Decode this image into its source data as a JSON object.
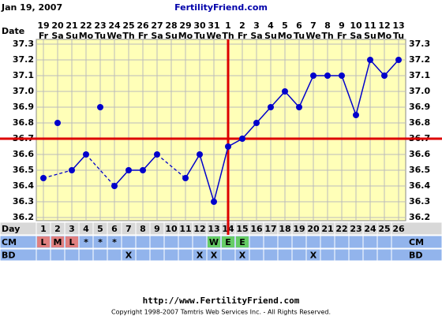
{
  "header": {
    "date": "Jan 19, 2007",
    "site": "FertilityFriend.com"
  },
  "chart_data": {
    "type": "line",
    "x": [
      1,
      2,
      3,
      4,
      5,
      6,
      7,
      8,
      9,
      10,
      11,
      12,
      13,
      14,
      15,
      16,
      17,
      18,
      19,
      20,
      21,
      22,
      23,
      24,
      25,
      26
    ],
    "xlim": [
      0.5,
      26.5
    ],
    "values": [
      36.45,
      null,
      36.5,
      36.6,
      null,
      36.4,
      36.5,
      36.5,
      36.6,
      null,
      36.45,
      36.6,
      36.3,
      36.65,
      36.7,
      36.8,
      36.9,
      37.0,
      36.9,
      37.1,
      37.1,
      37.1,
      36.85,
      37.2,
      37.1,
      37.2
    ],
    "discarded": [
      null,
      36.8,
      null,
      null,
      36.9,
      null,
      null,
      null,
      null,
      null,
      null,
      null,
      null,
      null,
      null,
      null,
      null,
      null,
      null,
      null,
      null,
      null,
      null,
      null,
      null,
      null
    ],
    "color": "#0000cc",
    "ylim": [
      36.2,
      37.3
    ],
    "yticks": [
      36.2,
      36.3,
      36.4,
      36.5,
      36.6,
      36.7,
      36.8,
      36.9,
      {
        "value": 37,
        "label": "37.0"
      },
      37.1,
      37.2,
      37.3
    ],
    "grid": true,
    "background": "#ffffb8",
    "coverline": 36.7,
    "ovulation_day": 14,
    "marker_color": "#dd0000",
    "dates": [
      19,
      20,
      21,
      22,
      23,
      24,
      25,
      26,
      27,
      28,
      29,
      30,
      31,
      1,
      2,
      3,
      4,
      5,
      6,
      7,
      8,
      9,
      10,
      11,
      12,
      13
    ],
    "weekdays": [
      "Fr",
      "Sa",
      "Su",
      "Mo",
      "Tu",
      "We",
      "Th",
      "Fr",
      "Sa",
      "Su",
      "Mo",
      "Tu",
      "We",
      "Th",
      "Fr",
      "Sa",
      "Su",
      "Mo",
      "Tu",
      "We",
      "Th",
      "Fr",
      "Sa",
      "Su",
      "Mo",
      "Tu"
    ],
    "cm": [
      "L",
      "M",
      "L",
      "*",
      "*",
      "*",
      null,
      null,
      null,
      null,
      null,
      null,
      "W",
      "E",
      "E",
      null,
      null,
      null,
      null,
      null,
      null,
      null,
      null,
      null,
      null,
      null
    ],
    "cm_colors": {
      "L": "#e08080",
      "M": "#e08080",
      "W": "#66cc66",
      "E": "#66cc66"
    },
    "bd": [
      null,
      null,
      null,
      null,
      null,
      null,
      "X",
      null,
      null,
      null,
      null,
      "X",
      "X",
      null,
      "X",
      null,
      null,
      null,
      null,
      "X",
      null,
      null,
      null,
      null,
      null,
      null
    ],
    "row_labels": {
      "date": "Date",
      "day": "Day",
      "cm": "CM",
      "bd": "BD"
    }
  },
  "footer": {
    "url": "http://www.FertilityFriend.com",
    "copyright": "Copyright 1998-2007 Tamtris Web Services Inc. - All Rights Reserved."
  }
}
